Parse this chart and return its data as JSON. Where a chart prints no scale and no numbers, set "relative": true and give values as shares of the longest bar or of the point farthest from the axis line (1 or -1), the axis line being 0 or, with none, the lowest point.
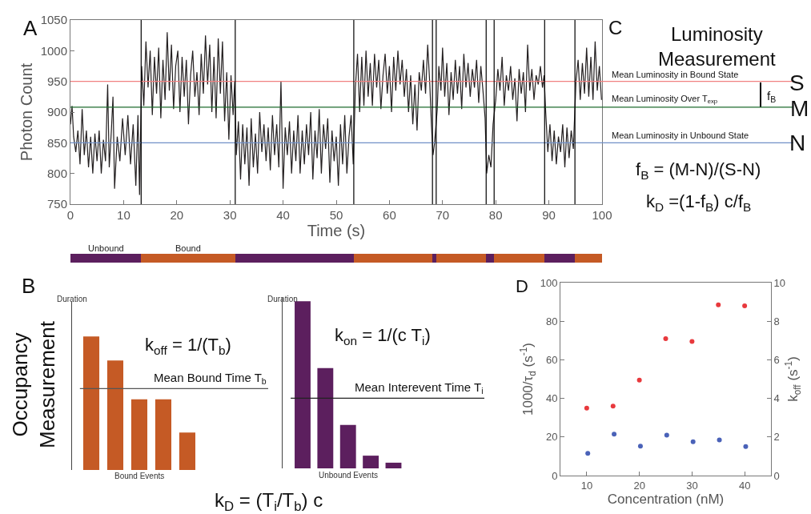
{
  "chart_data": [
    {
      "type": "line",
      "xlabel": "Time (s)",
      "ylabel": "Photon Count",
      "x": [
        0,
        0.3,
        0.6,
        1,
        1.4,
        1.8,
        2.2,
        2.6,
        3,
        3.4,
        3.8,
        4.2,
        4.6,
        5,
        5.4,
        5.8,
        6.2,
        6.6,
        7,
        7.3,
        7.7,
        8,
        8.3,
        8.8,
        9.3,
        9.8,
        10.3,
        10.8,
        11.3,
        11.8,
        12.3,
        12.7,
        13,
        13.2,
        13.4,
        13.8,
        14.2,
        14.6,
        15,
        15.4,
        15.8,
        16.2,
        16.6,
        17,
        17.4,
        17.8,
        18.2,
        18.6,
        19,
        19.4,
        19.8,
        20.2,
        20.6,
        21,
        21.4,
        21.8,
        22.2,
        22.6,
        23,
        23.4,
        23.8,
        24.2,
        24.6,
        25,
        25.4,
        25.8,
        26.2,
        26.6,
        27,
        27.4,
        27.8,
        28.2,
        28.6,
        29,
        29.4,
        29.8,
        30.2,
        30.6,
        30.9,
        31.2,
        31.6,
        32,
        32.4,
        32.8,
        33.2,
        33.6,
        34,
        34.4,
        34.8,
        35.2,
        35.6,
        36,
        36.4,
        36.8,
        37.2,
        37.6,
        38,
        38.4,
        38.8,
        39.2,
        39.6,
        40,
        40.4,
        40.8,
        41.2,
        41.6,
        42,
        42.4,
        42.8,
        43.2,
        43.6,
        44,
        44.4,
        44.8,
        45.2,
        45.6,
        46,
        46.4,
        46.8,
        47.2,
        47.6,
        48,
        48.4,
        48.8,
        49.2,
        49.6,
        50,
        50.4,
        50.8,
        51.2,
        51.6,
        52,
        52.4,
        52.8,
        53.2,
        53.6,
        54,
        54.4,
        54.8,
        55.2,
        55.6,
        56,
        56.4,
        56.8,
        57.2,
        57.6,
        58,
        58.4,
        58.8,
        59.2,
        59.6,
        60,
        60.4,
        60.8,
        61.2,
        61.6,
        62,
        62.4,
        62.8,
        63.2,
        63.6,
        64,
        64.4,
        64.8,
        65.2,
        65.6,
        66,
        66.4,
        66.8,
        67.2,
        67.6,
        67.9,
        68.2,
        68.5,
        69,
        69.3,
        69.7,
        70,
        70.4,
        70.8,
        71.2,
        71.6,
        72,
        72.4,
        72.8,
        73.2,
        73.6,
        74,
        74.4,
        74.8,
        75.2,
        75.6,
        76,
        76.4,
        76.8,
        77.2,
        77.6,
        78,
        78.3,
        78.7,
        79.1,
        79.5,
        80,
        80.4,
        80.8,
        81.2,
        81.6,
        82,
        82.4,
        82.8,
        83.2,
        83.6,
        84,
        84.4,
        84.8,
        85.2,
        85.6,
        86,
        86.4,
        86.8,
        87.2,
        87.6,
        88,
        88.4,
        88.8,
        89.1,
        89.4,
        89.8,
        90.2,
        90.6,
        91,
        91.4,
        91.8,
        92.2,
        92.6,
        93,
        93.4,
        93.8,
        94.2,
        94.6,
        95.1,
        95.5,
        95.9,
        96.3,
        96.7,
        97.1,
        97.5,
        97.9,
        98.3,
        98.7,
        99.1,
        99.5,
        99.9
      ],
      "series": [
        {
          "color": "#231f20",
          "values": [
            880,
            910,
            860,
            835,
            870,
            815,
            905,
            830,
            870,
            810,
            860,
            800,
            865,
            820,
            870,
            800,
            855,
            820,
            945,
            810,
            870,
            925,
            775,
            860,
            820,
            890,
            830,
            895,
            815,
            880,
            780,
            895,
            765,
            870,
            975,
            910,
            1015,
            940,
            1000,
            895,
            990,
            930,
            1005,
            890,
            985,
            920,
            1030,
            935,
            1010,
            905,
            975,
            1000,
            900,
            990,
            925,
            985,
            880,
            960,
            1000,
            925,
            965,
            895,
            995,
            930,
            1025,
            945,
            1010,
            900,
            990,
            890,
            1020,
            930,
            1015,
            885,
            965,
            855,
            960,
            895,
            950,
            830,
            885,
            790,
            880,
            815,
            875,
            780,
            890,
            810,
            865,
            800,
            900,
            835,
            880,
            820,
            875,
            805,
            895,
            830,
            880,
            810,
            950,
            775,
            875,
            830,
            885,
            800,
            870,
            820,
            895,
            800,
            870,
            815,
            880,
            830,
            900,
            790,
            870,
            825,
            905,
            800,
            880,
            840,
            890,
            785,
            870,
            820,
            860,
            780,
            880,
            815,
            895,
            800,
            860,
            895,
            815,
            940,
            995,
            900,
            990,
            910,
            1000,
            925,
            980,
            910,
            995,
            940,
            985,
            905,
            960,
            995,
            930,
            975,
            900,
            990,
            935,
            1000,
            945,
            985,
            925,
            970,
            900,
            960,
            880,
            945,
            870,
            965,
            935,
            985,
            930,
            1010,
            945,
            880,
            830,
            850,
            905,
            975,
            935,
            1005,
            925,
            980,
            895,
            965,
            920,
            985,
            930,
            975,
            905,
            995,
            940,
            980,
            925,
            970,
            940,
            985,
            915,
            975,
            935,
            890,
            800,
            830,
            810,
            880,
            920,
            970,
            935,
            990,
            910,
            960,
            935,
            975,
            920,
            955,
            885,
            970,
            930,
            965,
            900,
            1010,
            935,
            970,
            920,
            960,
            945,
            975,
            940,
            960,
            900,
            835,
            880,
            820,
            870,
            815,
            860,
            835,
            880,
            810,
            875,
            825,
            870,
            840,
            950,
            985,
            920,
            980,
            930,
            1005,
            925,
            990,
            920,
            1015,
            935,
            975,
            920
          ]
        }
      ],
      "xlim": [
        0,
        100
      ],
      "xticks": [
        0,
        10,
        20,
        30,
        40,
        50,
        60,
        70,
        80,
        90,
        100
      ],
      "ylim": [
        750,
        1050
      ],
      "yticks": [
        750,
        800,
        850,
        900,
        950,
        1000,
        1050
      ],
      "ref_lines": [
        {
          "axis": "y",
          "value": 950,
          "label": "Mean Luminosity in Bound State",
          "color": "#f08080"
        },
        {
          "axis": "y",
          "value": 908,
          "label": "Mean Luminosity Over T$_{exp}$",
          "color": "#1e6b2e"
        },
        {
          "axis": "y",
          "value": 850,
          "label": "Mean Luminosity in Unbound State",
          "color": "#7090c8"
        },
        {
          "axis": "x",
          "value": 13.3,
          "color": "#000000"
        },
        {
          "axis": "x",
          "value": 31,
          "color": "#000000"
        },
        {
          "axis": "x",
          "value": 53.3,
          "color": "#000000"
        },
        {
          "axis": "x",
          "value": 68.1,
          "color": "#000000"
        },
        {
          "axis": "x",
          "value": 68.8,
          "color": "#000000"
        },
        {
          "axis": "x",
          "value": 78.2,
          "color": "#000000"
        },
        {
          "axis": "x",
          "value": 79.7,
          "color": "#000000"
        },
        {
          "axis": "x",
          "value": 89.2,
          "color": "#000000"
        },
        {
          "axis": "x",
          "value": 94.9,
          "color": "#000000"
        }
      ],
      "annotations": [
        "A",
        "C",
        "Luminosity Measurement",
        "S",
        "M",
        "N",
        "f$_{B}$",
        "f$_{B}$ = (M-N)/(S-N)",
        "k$_{D}$ =(1-f$_{B}$) c/f$_{B}$"
      ]
    },
    {
      "type": "bar",
      "orientation": "horizontal",
      "stacked": true,
      "categories": [
        null
      ],
      "xlim": [
        0,
        100
      ],
      "tick_labels": false,
      "series": [
        {
          "name": "Unbound",
          "color": "#5c1f5e",
          "values": [
            13.3
          ]
        },
        {
          "name": "Bound",
          "color": "#c55a25",
          "values": [
            17.7
          ]
        },
        {
          "color": "#5c1f5e",
          "values": [
            22.3
          ]
        },
        {
          "color": "#c55a25",
          "values": [
            14.8
          ]
        },
        {
          "color": "#5c1f5e",
          "values": [
            0.7
          ]
        },
        {
          "color": "#c55a25",
          "values": [
            9.4
          ]
        },
        {
          "color": "#5c1f5e",
          "values": [
            1.5
          ]
        },
        {
          "color": "#c55a25",
          "values": [
            9.5
          ]
        },
        {
          "color": "#5c1f5e",
          "values": [
            5.7
          ]
        },
        {
          "color": "#c55a25",
          "values": [
            5.1
          ]
        }
      ]
    },
    {
      "type": "bar",
      "relative": true,
      "categories": [
        null,
        null,
        null,
        null,
        null
      ],
      "tick_labels": false,
      "ylabel": "Duration",
      "xlabel": "Bound Events",
      "series": [
        {
          "color": "#c55a25",
          "values": [
            1,
            0.82,
            0.53,
            0.53,
            0.28
          ]
        }
      ],
      "ref_lines": [
        {
          "axis": "y",
          "value": 0.61,
          "label": "Mean Bound Time T$_{b}$",
          "color": "#555555"
        }
      ],
      "annotations": [
        "B",
        "Occupancy Measurement",
        "k$_{off}$ = 1/(T$_{b}$)",
        "k$_{D}$ = (T$_{i}$/T$_{b}$) c"
      ]
    },
    {
      "type": "bar",
      "relative": true,
      "categories": [
        null,
        null,
        null,
        null,
        null
      ],
      "tick_labels": false,
      "ylabel": "Duration",
      "xlabel": "Unbound Events",
      "series": [
        {
          "color": "#5c1f5e",
          "values": [
            1,
            0.6,
            0.26,
            0.076,
            0.034
          ]
        }
      ],
      "ref_lines": [
        {
          "axis": "y",
          "value": 0.42,
          "label": "Mean Interevent Time T$_{i}$",
          "color": "#222222"
        }
      ],
      "annotations": [
        "k$_{on}$ = 1/(c T$_{i}$)"
      ]
    },
    {
      "type": "scatter",
      "marker": "circle",
      "xlabel": "Concentration (nM)",
      "ylabel": "1000/τ$_{d}$ (s$^{-1}$)",
      "y2label": "k$_{off}$ (s$^{-1}$)",
      "x": [
        10,
        15,
        20,
        25,
        30,
        35,
        40
      ],
      "series": [
        {
          "color": "#e8393d",
          "values": [
            35,
            36,
            49.5,
            71,
            69.5,
            88.5,
            88
          ]
        },
        {
          "color": "#4a62b8",
          "axis": "y2",
          "x": [
            10.2,
            15.2,
            20.2,
            25.2,
            30.2,
            35.2,
            40.2
          ],
          "values": [
            1.15,
            2.15,
            1.52,
            2.1,
            1.75,
            1.85,
            1.5
          ]
        }
      ],
      "xlim": [
        5,
        45
      ],
      "xticks": [
        10,
        20,
        30,
        40
      ],
      "ylim": [
        0,
        100
      ],
      "yticks": [
        0,
        20,
        40,
        60,
        80,
        100
      ],
      "y2lim": [
        0,
        10
      ],
      "y2ticks": [
        0,
        2,
        4,
        6,
        8,
        10
      ],
      "annotations": [
        "D"
      ]
    }
  ]
}
